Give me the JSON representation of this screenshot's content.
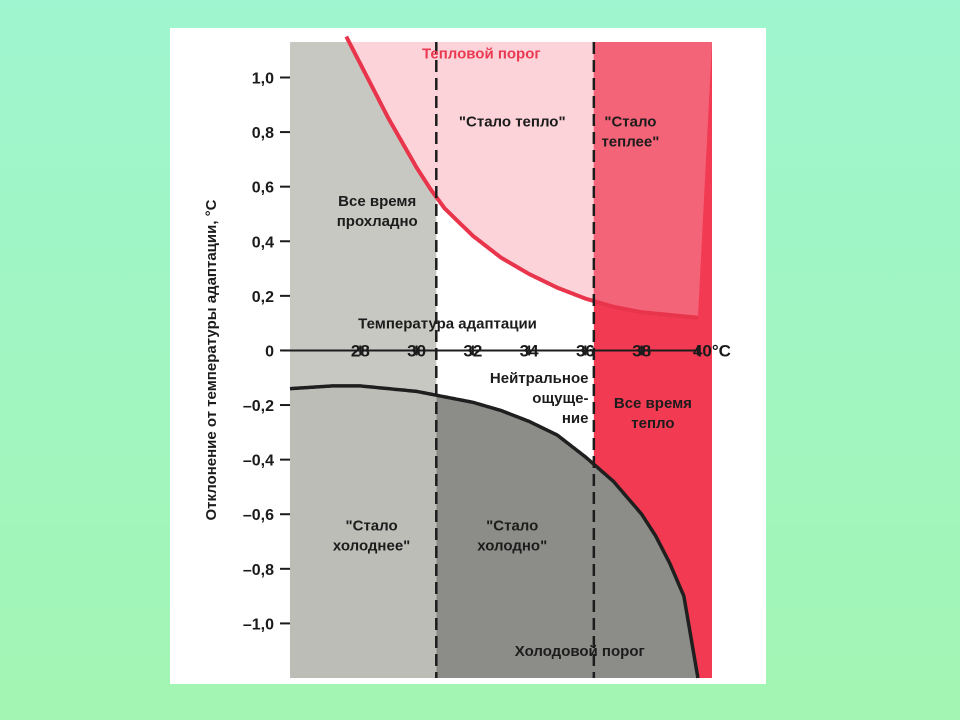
{
  "chart_data": {
    "type": "area",
    "xlabel": "Температура адаптации",
    "ylabel": "Отклонение от температуры адаптации, °C",
    "xlim": [
      25.5,
      40.5
    ],
    "ylim": [
      -1.2,
      1.13
    ],
    "x_ticks": [
      "28",
      "30",
      "32",
      "34",
      "36",
      "38",
      "40°C"
    ],
    "x_tick_values": [
      28,
      30,
      32,
      34,
      36,
      38,
      40
    ],
    "y_ticks": [
      "1,0",
      "0,8",
      "0,6",
      "0,4",
      "0,2",
      "0",
      "–0,2",
      "–0,4",
      "–0,6",
      "–0,8",
      "–1,0"
    ],
    "y_tick_values": [
      1.0,
      0.8,
      0.6,
      0.4,
      0.2,
      0,
      -0.2,
      -0.4,
      -0.6,
      -0.8,
      -1.0
    ],
    "series": [
      {
        "name": "Тепловой порог",
        "x": [
          27.5,
          28.0,
          28.5,
          29.0,
          29.5,
          30.0,
          30.5,
          31.0,
          31.5,
          32.0,
          33.0,
          34.0,
          35.0,
          36.0,
          37.0,
          38.0,
          39.0,
          40.0
        ],
        "y": [
          1.15,
          1.05,
          0.95,
          0.85,
          0.76,
          0.67,
          0.59,
          0.52,
          0.47,
          0.42,
          0.34,
          0.28,
          0.23,
          0.19,
          0.16,
          0.14,
          0.13,
          0.12
        ]
      },
      {
        "name": "Холодовой порог",
        "x": [
          25.5,
          27.0,
          28.0,
          29.0,
          30.0,
          31.0,
          32.0,
          33.0,
          34.0,
          35.0,
          36.0,
          37.0,
          38.0,
          38.5,
          39.0,
          39.5,
          40.0
        ],
        "y": [
          -0.14,
          -0.13,
          -0.13,
          -0.14,
          -0.15,
          -0.17,
          -0.19,
          -0.22,
          -0.26,
          -0.31,
          -0.39,
          -0.48,
          -0.6,
          -0.68,
          -0.78,
          -0.9,
          -1.2
        ]
      }
    ],
    "boundaries": [
      30.7,
      36.3
    ],
    "regions": [
      {
        "lines": [
          "Все время",
          "прохладно"
        ],
        "x": 28.6,
        "y": 0.53
      },
      {
        "lines": [
          "\"Стало тепло\""
        ],
        "x": 33.4,
        "y": 0.82
      },
      {
        "lines": [
          "\"Стало",
          "теплее\""
        ],
        "x": 37.6,
        "y": 0.82
      },
      {
        "lines": [
          "Нейтральное",
          "ощуще-",
          "ние"
        ],
        "x": 34.9,
        "y": -0.12
      },
      {
        "lines": [
          "Все время",
          "тепло"
        ],
        "x": 38.4,
        "y": -0.21
      },
      {
        "lines": [
          "\"Стало",
          "холоднее\""
        ],
        "x": 28.4,
        "y": -0.66
      },
      {
        "lines": [
          "\"Стало",
          "холодно\""
        ],
        "x": 33.4,
        "y": -0.66
      }
    ],
    "annotations": [
      {
        "text": "Тепловой порог",
        "x": 32.3,
        "y": 1.07
      },
      {
        "text": "Холодовой порог",
        "x": 35.8,
        "y": -1.12
      }
    ]
  }
}
